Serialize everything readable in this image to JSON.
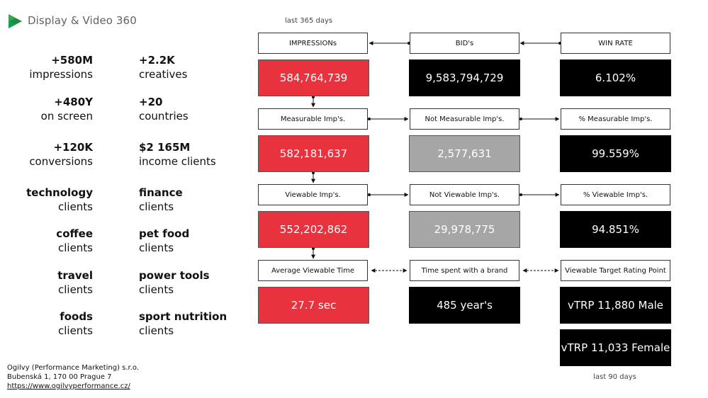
{
  "brand": {
    "name": "Display & Video 360",
    "accent_colors": [
      "#34a853",
      "#0f9d58",
      "#1e8e3e"
    ]
  },
  "stats": [
    {
      "big": "+580M",
      "small": "impressions"
    },
    {
      "big": "+2.2K",
      "small": "creatives"
    },
    {
      "big": "+480Y",
      "small": "on screen"
    },
    {
      "big": "+20",
      "small": "countries"
    },
    {
      "big": "+120K",
      "small": "conversions"
    },
    {
      "big": "$2 165M",
      "small": "income clients"
    },
    {
      "big": "technology",
      "small": "clients"
    },
    {
      "big": "finance",
      "small": "clients"
    },
    {
      "big": "coffee",
      "small": "clients"
    },
    {
      "big": "pet food",
      "small": "clients"
    },
    {
      "big": "travel",
      "small": "clients"
    },
    {
      "big": "power tools",
      "small": "clients"
    },
    {
      "big": "foods",
      "small": "clients"
    },
    {
      "big": "sport nutrition",
      "small": "clients"
    }
  ],
  "footer": {
    "company": "Ogilvy (Performance Marketing) s.r.o.",
    "address": "Bubenská 1, 170 00 Prague 7",
    "url": "https://www.ogilvyperformance.cz/"
  },
  "periods": {
    "top": "last 365 days",
    "bottom": "last 90 days"
  },
  "labels": {
    "impressions": "IMPRESSIONs",
    "bids": "BID's",
    "win_rate": "WIN RATE",
    "measurable": "Measurable Imp's.",
    "not_measurable": "Not Measurable Imp's.",
    "pct_measurable": "% Measurable Imp's.",
    "viewable": "Viewable Imp's.",
    "not_viewable": "Not Viewable Imp's.",
    "pct_viewable": "% Viewable Imp's.",
    "avg_time": "Average Viewable Time",
    "time_brand": "Time spent with a brand",
    "vtrp_label": "Viewable Target Rating Point"
  },
  "values": {
    "impressions": "584,764,739",
    "bids": "9,583,794,729",
    "win_rate": "6.102%",
    "measurable": "582,181,637",
    "not_measurable": "2,577,631",
    "pct_measurable": "99.559%",
    "viewable": "552,202,862",
    "not_viewable": "29,978,775",
    "pct_viewable": "94.851%",
    "avg_time": "27.7 sec",
    "time_brand": "485 year's",
    "vtrp_male": "vTRP 11,880 Male",
    "vtrp_female": "vTRP 11,033 Female"
  },
  "colors": {
    "red": "#e8333f",
    "black": "#000000",
    "grey": "#a6a6a6"
  }
}
